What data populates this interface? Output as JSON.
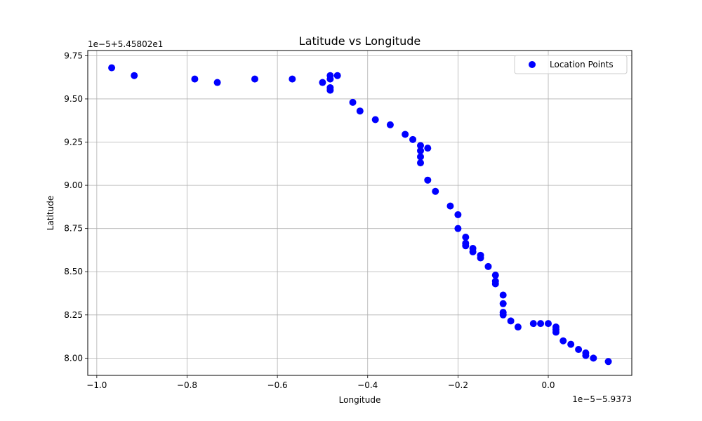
{
  "chart_data": {
    "type": "scatter",
    "title": "Latitude vs Longitude",
    "xlabel": "Longitude",
    "ylabel": "Latitude",
    "x_offset_text": "1e−5−5.9373",
    "y_offset_text": "1e−5+5.45802e1",
    "xlim": [
      -1.02,
      0.185
    ],
    "ylim": [
      7.9,
      9.78
    ],
    "x_ticks": [
      -1.0,
      -0.8,
      -0.6,
      -0.4,
      -0.2,
      0.0
    ],
    "x_tick_labels": [
      "−1.0",
      "−0.8",
      "−0.6",
      "−0.4",
      "−0.2",
      "0.0"
    ],
    "y_ticks": [
      8.0,
      8.25,
      8.5,
      8.75,
      9.0,
      9.25,
      9.5,
      9.75
    ],
    "y_tick_labels": [
      "8.00",
      "8.25",
      "8.50",
      "8.75",
      "9.00",
      "9.25",
      "9.50",
      "9.75"
    ],
    "grid": true,
    "legend_position": "top-right",
    "point_color": "#0000ff",
    "series": [
      {
        "name": "Location Points",
        "points": [
          [
            -0.967,
            9.68
          ],
          [
            -0.917,
            9.635
          ],
          [
            -0.783,
            9.615
          ],
          [
            -0.733,
            9.595
          ],
          [
            -0.65,
            9.615
          ],
          [
            -0.567,
            9.615
          ],
          [
            -0.5,
            9.595
          ],
          [
            -0.483,
            9.635
          ],
          [
            -0.483,
            9.615
          ],
          [
            -0.483,
            9.565
          ],
          [
            -0.483,
            9.55
          ],
          [
            -0.467,
            9.635
          ],
          [
            -0.433,
            9.48
          ],
          [
            -0.417,
            9.43
          ],
          [
            -0.383,
            9.38
          ],
          [
            -0.35,
            9.35
          ],
          [
            -0.317,
            9.295
          ],
          [
            -0.3,
            9.265
          ],
          [
            -0.283,
            9.23
          ],
          [
            -0.283,
            9.2
          ],
          [
            -0.283,
            9.165
          ],
          [
            -0.283,
            9.13
          ],
          [
            -0.267,
            9.215
          ],
          [
            -0.267,
            9.03
          ],
          [
            -0.25,
            8.965
          ],
          [
            -0.217,
            8.88
          ],
          [
            -0.2,
            8.83
          ],
          [
            -0.2,
            8.75
          ],
          [
            -0.183,
            8.7
          ],
          [
            -0.183,
            8.665
          ],
          [
            -0.183,
            8.65
          ],
          [
            -0.167,
            8.635
          ],
          [
            -0.167,
            8.615
          ],
          [
            -0.15,
            8.595
          ],
          [
            -0.15,
            8.58
          ],
          [
            -0.133,
            8.53
          ],
          [
            -0.117,
            8.48
          ],
          [
            -0.117,
            8.445
          ],
          [
            -0.117,
            8.43
          ],
          [
            -0.1,
            8.365
          ],
          [
            -0.1,
            8.315
          ],
          [
            -0.1,
            8.265
          ],
          [
            -0.1,
            8.25
          ],
          [
            -0.083,
            8.215
          ],
          [
            -0.067,
            8.18
          ],
          [
            -0.033,
            8.2
          ],
          [
            -0.017,
            8.2
          ],
          [
            0.0,
            8.2
          ],
          [
            0.017,
            8.18
          ],
          [
            0.017,
            8.165
          ],
          [
            0.017,
            8.15
          ],
          [
            0.033,
            8.1
          ],
          [
            0.05,
            8.08
          ],
          [
            0.067,
            8.05
          ],
          [
            0.083,
            8.03
          ],
          [
            0.083,
            8.015
          ],
          [
            0.1,
            8.0
          ],
          [
            0.133,
            7.98
          ]
        ]
      }
    ]
  }
}
